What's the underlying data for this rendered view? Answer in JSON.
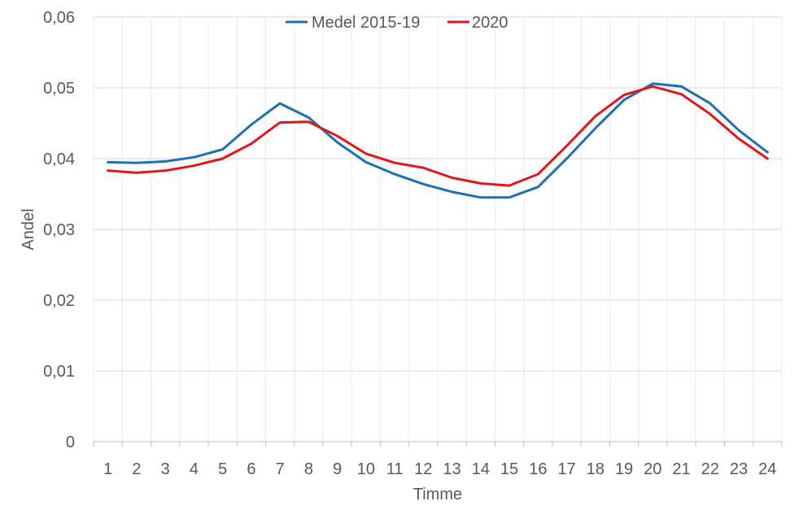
{
  "chart_data": {
    "type": "line",
    "title": "",
    "xlabel": "Timme",
    "ylabel": "Andel",
    "categories": [
      "1",
      "2",
      "3",
      "4",
      "5",
      "6",
      "7",
      "8",
      "9",
      "10",
      "11",
      "12",
      "13",
      "14",
      "15",
      "16",
      "17",
      "18",
      "19",
      "20",
      "21",
      "22",
      "23",
      "24"
    ],
    "ylim": [
      0,
      0.06
    ],
    "yticks": [
      0,
      0.01,
      0.02,
      0.03,
      0.04,
      0.05,
      0.06
    ],
    "ytick_labels": [
      "0",
      "0,01",
      "0,02",
      "0,03",
      "0,04",
      "0,05",
      "0,06"
    ],
    "grid": "vertical and horizontal",
    "legend_position": "top-center",
    "series": [
      {
        "name": "Medel 2015-19",
        "color": "#1f6fb4",
        "values": [
          0.0395,
          0.0394,
          0.0396,
          0.0402,
          0.0413,
          0.0448,
          0.0478,
          0.0458,
          0.0423,
          0.0395,
          0.0378,
          0.0364,
          0.0353,
          0.0345,
          0.0345,
          0.036,
          0.04,
          0.0443,
          0.0483,
          0.0506,
          0.0502,
          0.0478,
          0.044,
          0.0409
        ]
      },
      {
        "name": "2020",
        "color": "#e0161d",
        "values": [
          0.0383,
          0.038,
          0.0383,
          0.039,
          0.04,
          0.0421,
          0.0451,
          0.0452,
          0.0432,
          0.0407,
          0.0394,
          0.0387,
          0.0373,
          0.0365,
          0.0362,
          0.0378,
          0.0418,
          0.046,
          0.049,
          0.0502,
          0.0491,
          0.0463,
          0.0428,
          0.04
        ]
      }
    ]
  }
}
